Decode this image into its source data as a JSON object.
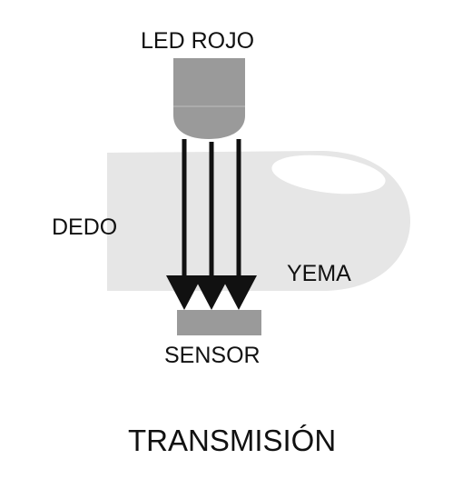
{
  "labels": {
    "led": "LED ROJO",
    "finger": "DEDO",
    "fingertip": "YEMA",
    "sensor": "SENSOR",
    "title": "TRANSMISIÓN"
  },
  "colors": {
    "finger": "#e6e6e6",
    "nail": "#ffffff",
    "led": "#9a9a9a",
    "sensor": "#9a9a9a",
    "arrow": "#111111",
    "text": "#111111"
  },
  "beam_count": 3
}
